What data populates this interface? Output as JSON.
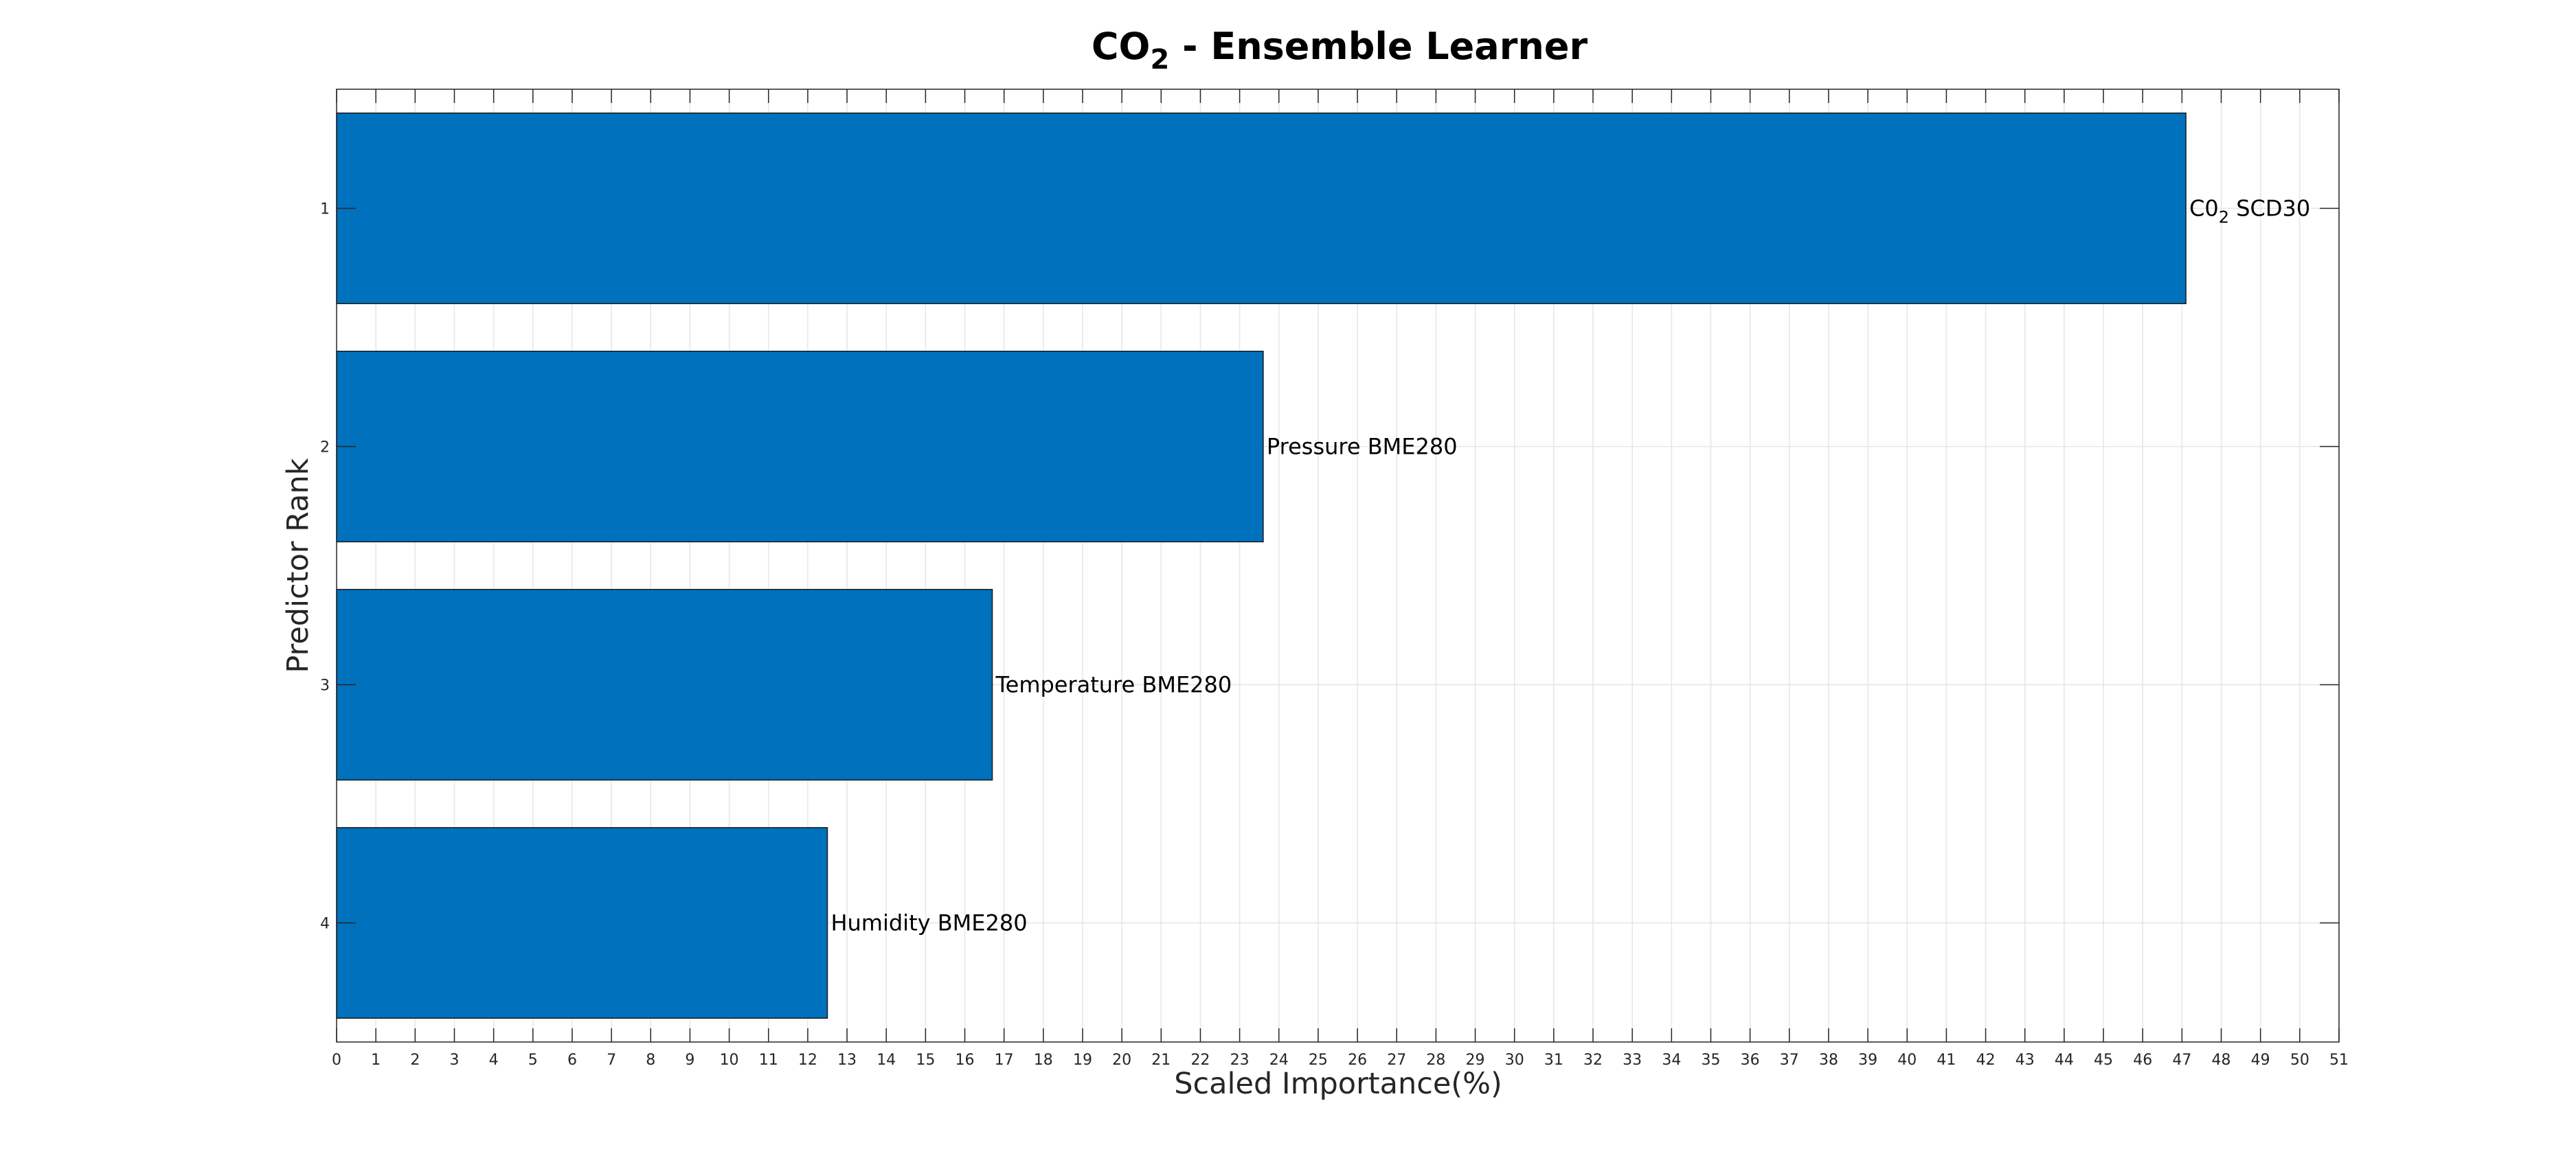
{
  "chart_data": {
    "type": "bar",
    "orientation": "horizontal",
    "title": "CO",
    "title_subscript": "2",
    "title_suffix": " - Ensemble Learner",
    "xlabel": "Scaled Importance(%)",
    "ylabel": "Predictor Rank",
    "xlim": [
      0,
      51
    ],
    "xticks": [
      0,
      1,
      2,
      3,
      4,
      5,
      6,
      7,
      8,
      9,
      10,
      11,
      12,
      13,
      14,
      15,
      16,
      17,
      18,
      19,
      20,
      21,
      22,
      23,
      24,
      25,
      26,
      27,
      28,
      29,
      30,
      31,
      32,
      33,
      34,
      35,
      36,
      37,
      38,
      39,
      40,
      41,
      42,
      43,
      44,
      45,
      46,
      47,
      48,
      49,
      50,
      51
    ],
    "categories": [
      "1",
      "2",
      "3",
      "4"
    ],
    "values": [
      47.1,
      23.6,
      16.7,
      12.5
    ],
    "bar_labels": [
      {
        "text": "C0",
        "sub": "2",
        "suffix": " SCD30"
      },
      {
        "text": "Pressure BME280",
        "sub": "",
        "suffix": ""
      },
      {
        "text": "Temperature BME280",
        "sub": "",
        "suffix": ""
      },
      {
        "text": "Humidity BME280",
        "sub": "",
        "suffix": ""
      }
    ],
    "bar_color": "#0072BD",
    "grid": true
  }
}
